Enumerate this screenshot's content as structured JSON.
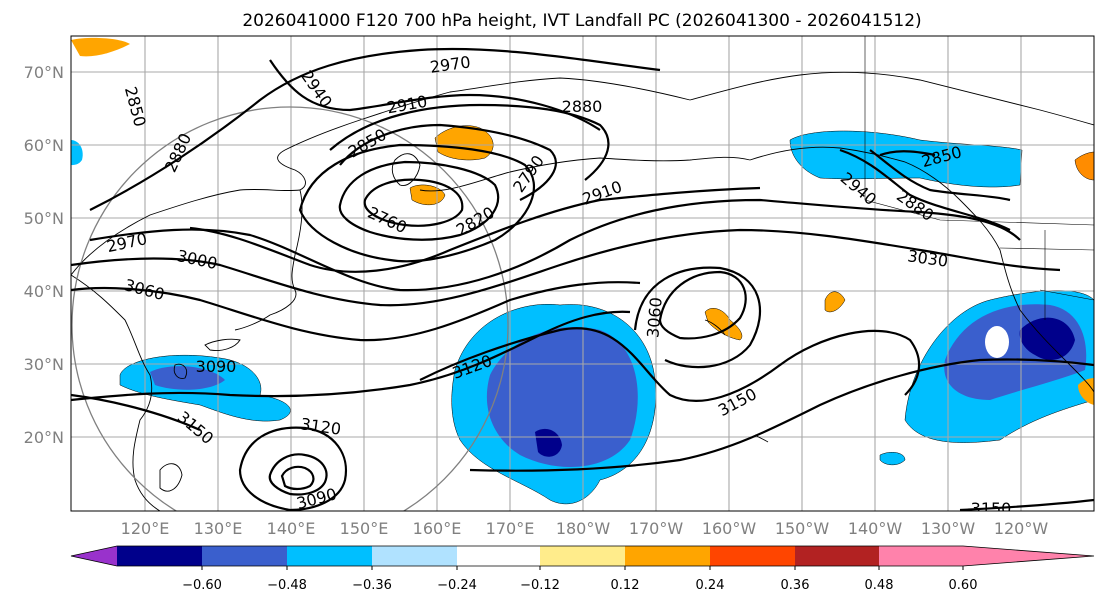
{
  "title": "2026041000 F120 700 hPa height, IVT Landfall PC (2026041300 - 2026041512)",
  "lat_labels": [
    "70°N",
    "60°N",
    "50°N",
    "40°N",
    "30°N",
    "20°N"
  ],
  "lon_labels": [
    "120°E",
    "130°E",
    "140°E",
    "150°E",
    "160°E",
    "170°E",
    "180°W",
    "170°W",
    "160°W",
    "150°W",
    "140°W",
    "130°W",
    "120°W"
  ],
  "colorbar": {
    "colors": [
      "#9932cc",
      "#00008b",
      "#3a5fcd",
      "#00bfff",
      "#b0e2ff",
      "#ffffff",
      "#ffec8b",
      "#ffa500",
      "#ff4500",
      "#b22222",
      "#ff82ab"
    ],
    "tick_labels": [
      "−0.60",
      "−0.48",
      "−0.36",
      "−0.24",
      "−0.12",
      "0.12",
      "0.24",
      "0.36",
      "0.48",
      "0.60"
    ]
  },
  "contour_labels": [
    "2970",
    "2940",
    "2850",
    "2910",
    "2880",
    "2880",
    "2850",
    "2790",
    "2760",
    "2820",
    "2910",
    "2970",
    "3000",
    "3060",
    "3090",
    "3150",
    "3120",
    "3090",
    "3120",
    "3060",
    "3150",
    "2940",
    "2850",
    "2880",
    "3030",
    "3150"
  ]
}
